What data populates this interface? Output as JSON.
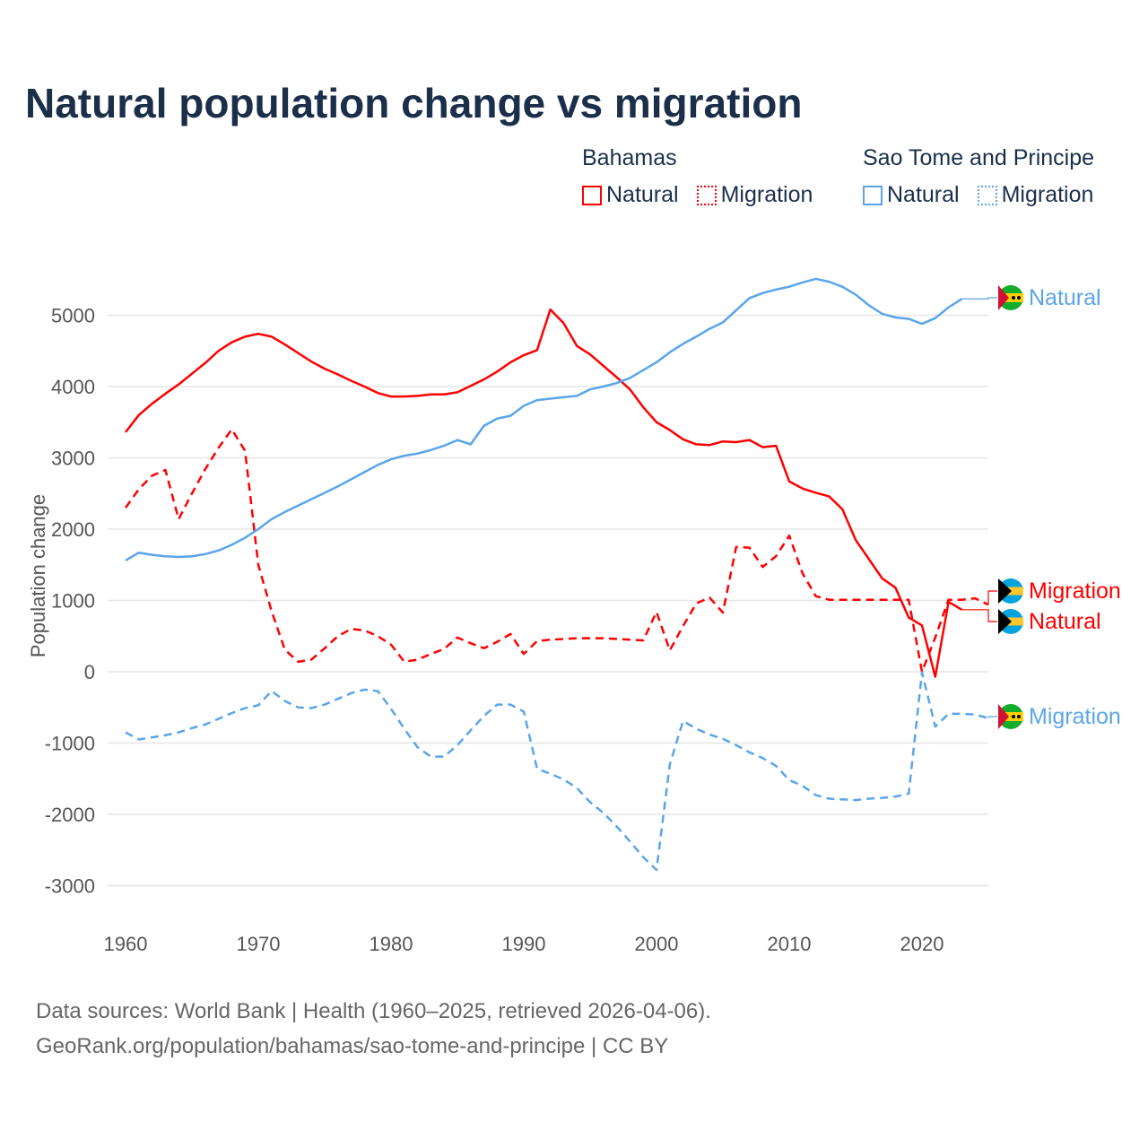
{
  "title": "Natural population change vs migration",
  "legend": [
    {
      "country": "Bahamas",
      "items": [
        {
          "label": "Natural",
          "style": "solid",
          "color": "#ff0000"
        },
        {
          "label": "Migration",
          "style": "dotted",
          "color": "#ff0000"
        }
      ]
    },
    {
      "country": "Sao Tome and Principe",
      "items": [
        {
          "label": "Natural",
          "style": "solid",
          "color": "#5aa5ea"
        },
        {
          "label": "Migration",
          "style": "dotted",
          "color": "#5aa5ea"
        }
      ]
    }
  ],
  "chart_data": {
    "type": "line",
    "title": "Natural population change vs migration",
    "xlabel": "",
    "ylabel": "Population change",
    "xlim": [
      1960,
      2025
    ],
    "ylim": [
      -3000,
      5500
    ],
    "x_ticks": [
      1960,
      1970,
      1980,
      1990,
      2000,
      2010,
      2020
    ],
    "y_ticks": [
      -3000,
      -2000,
      -1000,
      0,
      1000,
      2000,
      3000,
      4000,
      5000
    ],
    "grid": true,
    "series": [
      {
        "name": "Bahamas Natural",
        "country": "Bahamas",
        "kind": "Natural",
        "color": "#ff0000",
        "dash": false,
        "start": 1960,
        "values": [
          3360,
          3600,
          3760,
          3900,
          4030,
          4180,
          4330,
          4500,
          4620,
          4700,
          4740,
          4700,
          4590,
          4470,
          4350,
          4250,
          4170,
          4080,
          4000,
          3910,
          3860,
          3860,
          3870,
          3890,
          3890,
          3920,
          4010,
          4100,
          4210,
          4340,
          4440,
          4510,
          5080,
          4890,
          4570,
          4450,
          4290,
          4130,
          3960,
          3710,
          3500,
          3390,
          3260,
          3190,
          3180,
          3230,
          3220,
          3250,
          3150,
          3170,
          2670,
          2570,
          2510,
          2460,
          2280,
          1850,
          1580,
          1310,
          1180,
          760,
          650,
          -70,
          980,
          870
        ],
        "end_label": "Natural"
      },
      {
        "name": "Bahamas Migration",
        "country": "Bahamas",
        "kind": "Migration",
        "color": "#ff0000",
        "dash": true,
        "start": 1960,
        "values": [
          2300,
          2560,
          2750,
          2830,
          2140,
          2500,
          2840,
          3140,
          3400,
          3100,
          1500,
          850,
          310,
          140,
          170,
          330,
          500,
          600,
          580,
          500,
          380,
          140,
          170,
          250,
          320,
          480,
          400,
          330,
          420,
          530,
          250,
          430,
          450,
          460,
          470,
          470,
          470,
          460,
          450,
          440,
          840,
          300,
          640,
          960,
          1040,
          830,
          1750,
          1740,
          1470,
          1620,
          1910,
          1380,
          1060,
          1010,
          1010,
          1010,
          1010,
          1010,
          1010,
          1010,
          0,
          480,
          1010,
          1010,
          1030,
          940
        ],
        "end_label": "Migration"
      },
      {
        "name": "Sao Tome and Principe Natural",
        "country": "Sao Tome and Principe",
        "kind": "Natural",
        "color": "#5aa5ea",
        "dash": false,
        "start": 1960,
        "values": [
          1560,
          1670,
          1640,
          1620,
          1610,
          1620,
          1650,
          1700,
          1780,
          1880,
          2000,
          2140,
          2240,
          2330,
          2420,
          2510,
          2600,
          2700,
          2800,
          2900,
          2980,
          3030,
          3060,
          3110,
          3170,
          3250,
          3190,
          3450,
          3550,
          3590,
          3730,
          3810,
          3830,
          3850,
          3870,
          3960,
          4000,
          4050,
          4120,
          4230,
          4340,
          4480,
          4600,
          4700,
          4810,
          4900,
          5070,
          5240,
          5310,
          5360,
          5400,
          5460,
          5510,
          5470,
          5400,
          5290,
          5140,
          5020,
          4970,
          4950,
          4880,
          4960,
          5110,
          5230
        ],
        "end_label": "Natural"
      },
      {
        "name": "Sao Tome and Principe Migration",
        "country": "Sao Tome and Principe",
        "kind": "Migration",
        "color": "#5aa5ea",
        "dash": true,
        "start": 1960,
        "values": [
          -850,
          -950,
          -920,
          -890,
          -850,
          -790,
          -740,
          -660,
          -580,
          -510,
          -470,
          -270,
          -410,
          -500,
          -510,
          -460,
          -380,
          -300,
          -250,
          -270,
          -520,
          -800,
          -1060,
          -1190,
          -1190,
          -1030,
          -820,
          -620,
          -460,
          -460,
          -560,
          -1360,
          -1430,
          -1510,
          -1630,
          -1830,
          -1980,
          -2170,
          -2380,
          -2600,
          -2780,
          -1300,
          -690,
          -800,
          -880,
          -940,
          -1030,
          -1130,
          -1210,
          -1320,
          -1520,
          -1600,
          -1730,
          -1780,
          -1790,
          -1800,
          -1780,
          -1770,
          -1750,
          -1710,
          -10,
          -770,
          -590,
          -590,
          -600,
          -650
        ],
        "end_label": "Migration"
      }
    ]
  },
  "source": {
    "line1": "Data sources: World Bank | Health (1960–2025, retrieved 2026-04-06).",
    "line2": "GeoRank.org/population/bahamas/sao-tome-and-principe | CC BY"
  }
}
